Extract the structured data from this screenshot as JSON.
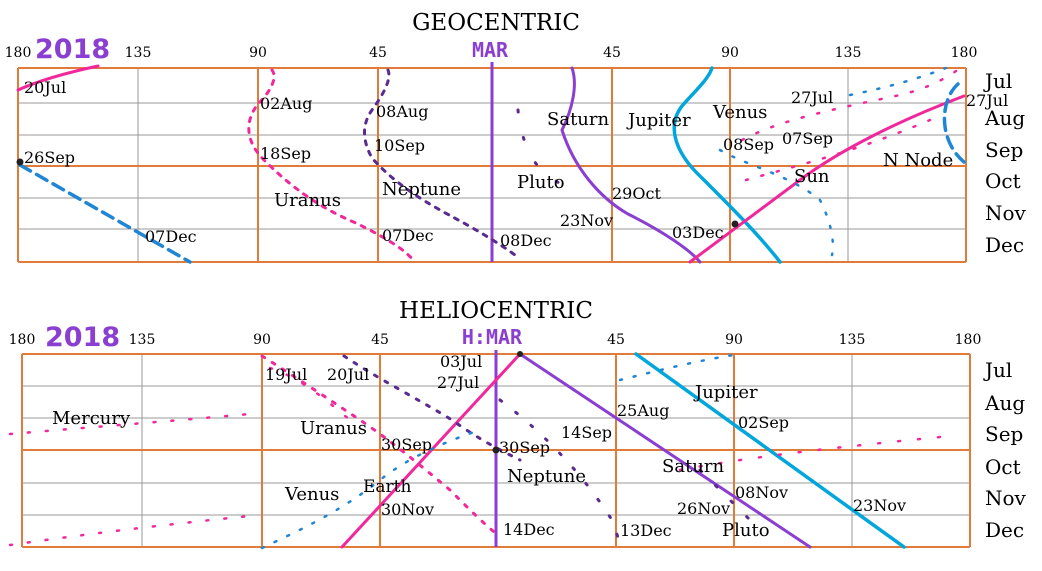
{
  "colors": {
    "grid": "#e07b39",
    "gridFine": "#9a9a9a",
    "mars": "#8a3fd1",
    "magenta": "#f0289b",
    "blue": "#1f86d6",
    "cyan": "#00a6dc",
    "darkPurple": "#5b2a8f"
  },
  "geo": {
    "title": "GEOCENTRIC",
    "year": "2018",
    "mars_label": "MAR",
    "axis_ticks": [
      "180",
      "135",
      "90",
      "45",
      "45",
      "90",
      "135",
      "180"
    ],
    "months": [
      "Jul",
      "Aug",
      "Sep",
      "Oct",
      "Nov",
      "Dec"
    ],
    "labels": {
      "jul20": "20Jul",
      "sep26": "26Sep",
      "dec07a": "07Dec",
      "aug02": "02Aug",
      "sep18": "18Sep",
      "uranus": "Uranus",
      "aug08": "08Aug",
      "sep10": "10Sep",
      "neptune": "Neptune",
      "dec07b": "07Dec",
      "dec08": "08Dec",
      "saturn": "Saturn",
      "pluto": "Pluto",
      "oct29": "29Oct",
      "nov23": "23Nov",
      "jupiter": "Jupiter",
      "dec03": "03Dec",
      "venus": "Venus",
      "jul27a": "27Jul",
      "jul27b": "27Jul",
      "sep08": "08Sep",
      "sep07": "07Sep",
      "nnode": "N Node",
      "sun": "Sun"
    }
  },
  "helio": {
    "title": "HELIOCENTRIC",
    "year": "2018",
    "mars_label": "H:MAR",
    "axis_ticks": [
      "180",
      "135",
      "90",
      "45",
      "45",
      "90",
      "135",
      "180"
    ],
    "months": [
      "Jul",
      "Aug",
      "Sep",
      "Oct",
      "Nov",
      "Dec"
    ],
    "labels": {
      "mercury": "Mercury",
      "jul19": "19Jul",
      "jul20": "20Jul",
      "jul03": "03Jul",
      "jul27": "27Jul",
      "uranus": "Uranus",
      "sep30a": "30Sep",
      "sep30b": "30Sep",
      "earth": "Earth",
      "venus": "Venus",
      "nov30": "30Nov",
      "dec14": "14Dec",
      "neptune": "Neptune",
      "aug25": "25Aug",
      "sep14": "14Sep",
      "dec13": "13Dec",
      "jupiter": "Jupiter",
      "sep02": "02Sep",
      "saturn": "Saturn",
      "nov08": "08Nov",
      "nov26": "26Nov",
      "pluto": "Pluto",
      "nov23": "23Nov"
    }
  }
}
